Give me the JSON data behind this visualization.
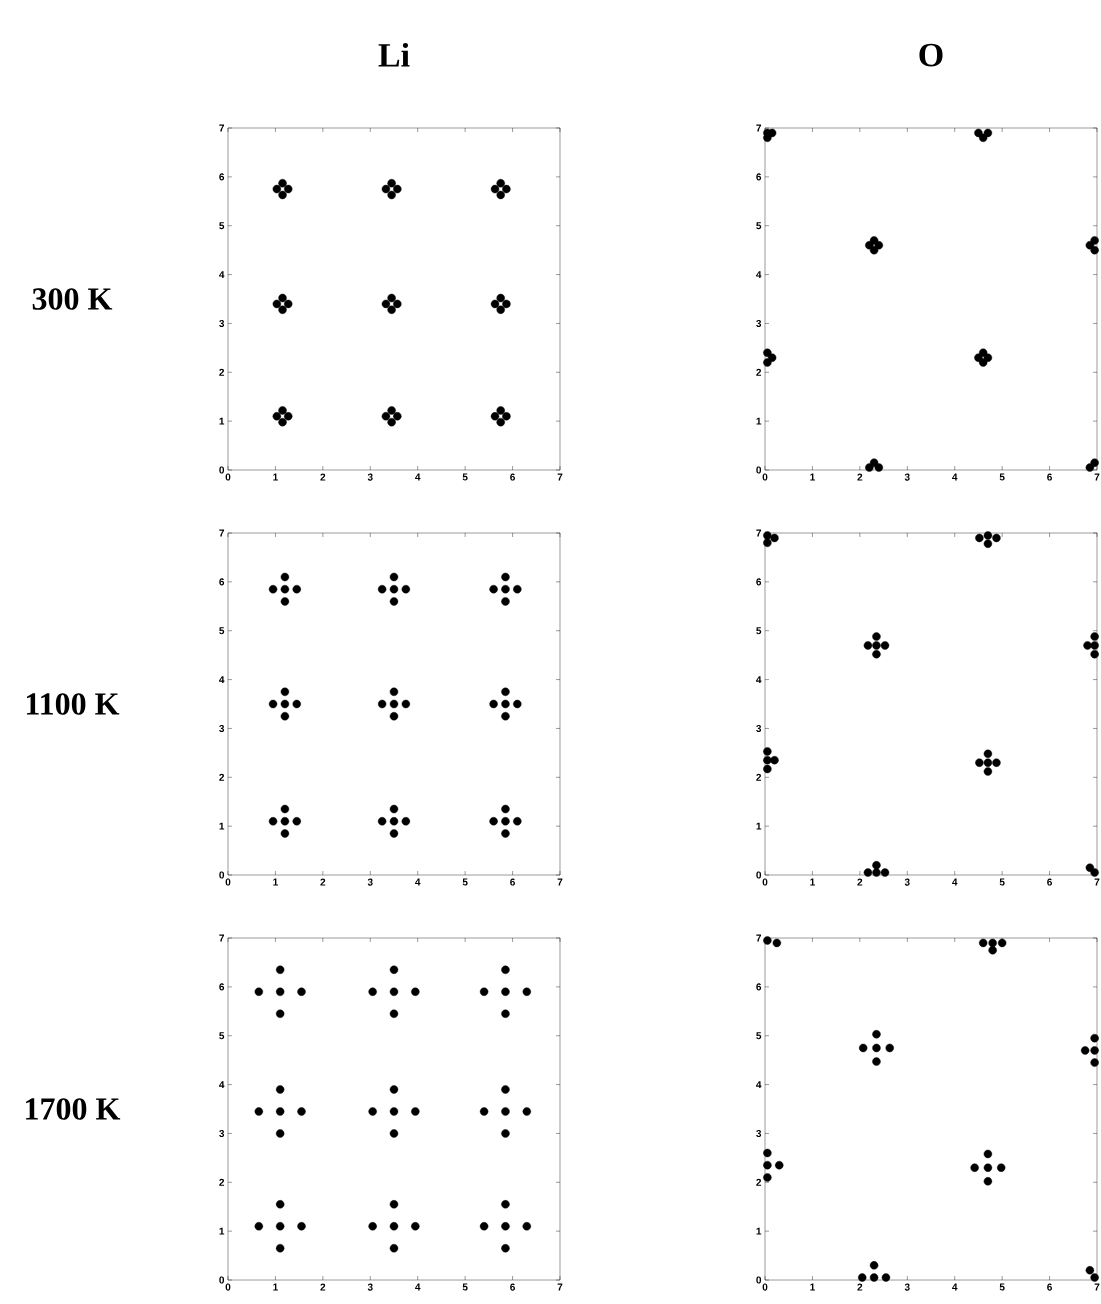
{
  "chart_data": [
    {
      "type": "scatter",
      "title": "Li",
      "ylabel": "300 K",
      "color": "#000000",
      "marker": "circle",
      "xlim": [
        0,
        7
      ],
      "ylim": [
        0,
        7
      ],
      "xticks": [
        0,
        1,
        2,
        3,
        4,
        5,
        6,
        7
      ],
      "yticks": [
        0,
        1,
        2,
        3,
        4,
        5,
        6,
        7
      ],
      "x": [
        1.03,
        1.27,
        1.15,
        1.15,
        3.33,
        3.57,
        3.45,
        3.45,
        5.63,
        5.87,
        5.75,
        5.75,
        1.03,
        1.27,
        1.15,
        1.15,
        3.33,
        3.57,
        3.45,
        3.45,
        5.63,
        5.87,
        5.75,
        5.75,
        1.03,
        1.27,
        1.15,
        1.15,
        3.33,
        3.57,
        3.45,
        3.45,
        5.63,
        5.87,
        5.75,
        5.75
      ],
      "values": [
        5.75,
        5.75,
        5.63,
        5.87,
        5.75,
        5.75,
        5.63,
        5.87,
        5.75,
        5.75,
        5.63,
        5.87,
        3.4,
        3.4,
        3.28,
        3.52,
        3.4,
        3.4,
        3.28,
        3.52,
        3.4,
        3.4,
        3.28,
        3.52,
        1.1,
        1.1,
        0.98,
        1.22,
        1.1,
        1.1,
        0.98,
        1.22,
        1.1,
        1.1,
        0.98,
        1.22
      ]
    },
    {
      "type": "scatter",
      "title": "O",
      "color": "#000000",
      "marker": "circle",
      "xlim": [
        0,
        7
      ],
      "ylim": [
        0,
        7
      ],
      "xticks": [
        0,
        1,
        2,
        3,
        4,
        5,
        6,
        7
      ],
      "yticks": [
        0,
        1,
        2,
        3,
        4,
        5,
        6,
        7
      ],
      "x": [
        0.05,
        0.15,
        0.05,
        4.5,
        4.7,
        4.6,
        2.2,
        2.4,
        2.3,
        2.3,
        6.85,
        6.95,
        6.95,
        0.15,
        0.05,
        0.05,
        4.5,
        4.7,
        4.6,
        4.6,
        2.2,
        2.4,
        2.3,
        6.85,
        6.95
      ],
      "values": [
        6.9,
        6.9,
        6.8,
        6.9,
        6.9,
        6.8,
        4.6,
        4.6,
        4.5,
        4.7,
        4.6,
        4.5,
        4.7,
        2.3,
        2.2,
        2.4,
        2.3,
        2.3,
        2.2,
        2.4,
        0.05,
        0.05,
        0.15,
        0.05,
        0.15
      ]
    },
    {
      "type": "scatter",
      "ylabel": "1100 K",
      "color": "#000000",
      "marker": "circle",
      "xlim": [
        0,
        7
      ],
      "ylim": [
        0,
        7
      ],
      "xticks": [
        0,
        1,
        2,
        3,
        4,
        5,
        6,
        7
      ],
      "yticks": [
        0,
        1,
        2,
        3,
        4,
        5,
        6,
        7
      ],
      "x": [
        1.2,
        0.95,
        1.45,
        1.2,
        1.2,
        3.5,
        3.25,
        3.75,
        3.5,
        3.5,
        5.85,
        5.6,
        6.1,
        5.85,
        5.85,
        1.2,
        0.95,
        1.45,
        1.2,
        1.2,
        3.5,
        3.25,
        3.75,
        3.5,
        3.5,
        5.85,
        5.6,
        6.1,
        5.85,
        5.85,
        1.2,
        0.95,
        1.45,
        1.2,
        1.2,
        3.5,
        3.25,
        3.75,
        3.5,
        3.5,
        5.85,
        5.6,
        6.1,
        5.85,
        5.85
      ],
      "values": [
        5.85,
        5.85,
        5.85,
        5.6,
        6.1,
        5.85,
        5.85,
        5.85,
        5.6,
        6.1,
        5.85,
        5.85,
        5.85,
        5.6,
        6.1,
        3.5,
        3.5,
        3.5,
        3.25,
        3.75,
        3.5,
        3.5,
        3.5,
        3.25,
        3.75,
        3.5,
        3.5,
        3.5,
        3.25,
        3.75,
        1.1,
        1.1,
        1.1,
        0.85,
        1.35,
        1.1,
        1.1,
        1.1,
        0.85,
        1.35,
        1.1,
        1.1,
        1.1,
        0.85,
        1.35
      ]
    },
    {
      "type": "scatter",
      "color": "#000000",
      "marker": "circle",
      "xlim": [
        0,
        7
      ],
      "ylim": [
        0,
        7
      ],
      "xticks": [
        0,
        1,
        2,
        3,
        4,
        5,
        6,
        7
      ],
      "yticks": [
        0,
        1,
        2,
        3,
        4,
        5,
        6,
        7
      ],
      "x": [
        0.05,
        0.2,
        0.05,
        4.7,
        4.52,
        4.88,
        4.7,
        2.35,
        2.17,
        2.53,
        2.35,
        2.35,
        6.95,
        6.8,
        6.95,
        6.95,
        0.05,
        0.2,
        0.05,
        0.05,
        4.7,
        4.52,
        4.88,
        4.7,
        4.7,
        2.35,
        2.17,
        2.53,
        2.35,
        6.95,
        6.85
      ],
      "values": [
        6.95,
        6.9,
        6.8,
        6.95,
        6.9,
        6.9,
        6.78,
        4.7,
        4.7,
        4.7,
        4.52,
        4.88,
        4.7,
        4.7,
        4.52,
        4.88,
        2.35,
        2.35,
        2.17,
        2.53,
        2.3,
        2.3,
        2.3,
        2.12,
        2.48,
        0.05,
        0.05,
        0.05,
        0.2,
        0.05,
        0.15
      ]
    },
    {
      "type": "scatter",
      "ylabel": "1700 K",
      "color": "#000000",
      "marker": "circle",
      "xlim": [
        0,
        7
      ],
      "ylim": [
        0,
        7
      ],
      "xticks": [
        0,
        1,
        2,
        3,
        4,
        5,
        6,
        7
      ],
      "yticks": [
        0,
        1,
        2,
        3,
        4,
        5,
        6,
        7
      ],
      "x": [
        1.1,
        0.65,
        1.55,
        1.1,
        1.1,
        3.5,
        3.05,
        3.95,
        3.5,
        3.5,
        5.85,
        5.4,
        6.3,
        5.85,
        5.85,
        1.1,
        0.65,
        1.55,
        1.1,
        1.1,
        3.5,
        3.05,
        3.95,
        3.5,
        3.5,
        5.85,
        5.4,
        6.3,
        5.85,
        5.85,
        1.1,
        0.65,
        1.55,
        1.1,
        1.1,
        3.5,
        3.05,
        3.95,
        3.5,
        3.5,
        5.85,
        5.4,
        6.3,
        5.85,
        5.85
      ],
      "values": [
        5.9,
        5.9,
        5.9,
        5.45,
        6.35,
        5.9,
        5.9,
        5.9,
        5.45,
        6.35,
        5.9,
        5.9,
        5.9,
        5.45,
        6.35,
        3.45,
        3.45,
        3.45,
        3.0,
        3.9,
        3.45,
        3.45,
        3.45,
        3.0,
        3.9,
        3.45,
        3.45,
        3.45,
        3.0,
        3.9,
        1.1,
        1.1,
        1.1,
        0.65,
        1.55,
        1.1,
        1.1,
        1.1,
        0.65,
        1.55,
        1.1,
        1.1,
        1.1,
        0.65,
        1.55
      ]
    },
    {
      "type": "scatter",
      "color": "#000000",
      "marker": "circle",
      "xlim": [
        0,
        7
      ],
      "ylim": [
        0,
        7
      ],
      "xticks": [
        0,
        1,
        2,
        3,
        4,
        5,
        6,
        7
      ],
      "yticks": [
        0,
        1,
        2,
        3,
        4,
        5,
        6,
        7
      ],
      "x": [
        0.05,
        0.25,
        4.8,
        4.6,
        5.0,
        4.8,
        2.35,
        2.07,
        2.63,
        2.35,
        2.35,
        6.95,
        6.75,
        6.95,
        6.95,
        0.05,
        0.3,
        0.05,
        0.05,
        4.7,
        4.42,
        4.98,
        4.7,
        4.7,
        2.3,
        2.05,
        2.55,
        2.3,
        6.95,
        6.85
      ],
      "values": [
        6.95,
        6.9,
        6.9,
        6.9,
        6.9,
        6.75,
        4.75,
        4.75,
        4.75,
        4.47,
        5.03,
        4.7,
        4.7,
        4.45,
        4.95,
        2.35,
        2.35,
        2.1,
        2.6,
        2.3,
        2.3,
        2.3,
        2.02,
        2.58,
        0.05,
        0.05,
        0.05,
        0.3,
        0.05,
        0.2
      ]
    }
  ]
}
